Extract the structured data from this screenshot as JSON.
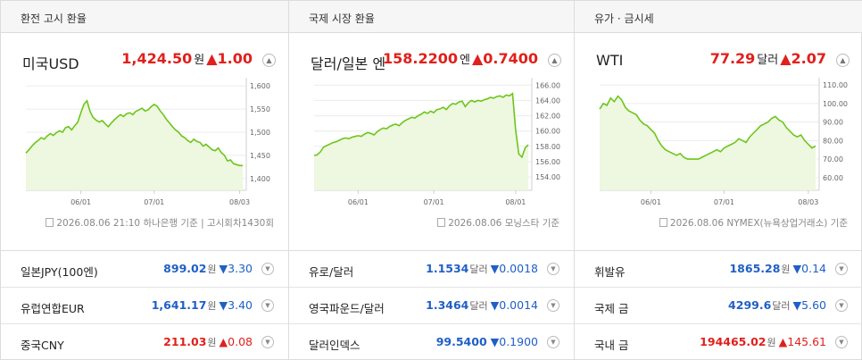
{
  "panels": [
    {
      "header": "환전 고시 환율",
      "main": {
        "title": "미국USD",
        "value": "1,424.50",
        "unit": "원",
        "change": "▲1.00",
        "direction": "up"
      },
      "chart": {
        "yticks": [
          "1,600",
          "1,550",
          "1,500",
          "1,450",
          "1,400"
        ],
        "yrange": [
          1390,
          1610
        ],
        "xticks": [
          {
            "label": "06/01",
            "i": 18
          },
          {
            "label": "07/01",
            "i": 42
          },
          {
            "label": "08/03",
            "i": 70
          }
        ],
        "values": [
          1455,
          1462,
          1470,
          1477,
          1482,
          1488,
          1485,
          1492,
          1497,
          1493,
          1499,
          1503,
          1500,
          1510,
          1512,
          1505,
          1514,
          1522,
          1542,
          1560,
          1568,
          1545,
          1532,
          1526,
          1522,
          1525,
          1518,
          1512,
          1520,
          1527,
          1533,
          1538,
          1534,
          1540,
          1542,
          1538,
          1545,
          1548,
          1552,
          1546,
          1548,
          1555,
          1560,
          1556,
          1546,
          1538,
          1528,
          1520,
          1512,
          1505,
          1500,
          1492,
          1488,
          1482,
          1478,
          1485,
          1480,
          1478,
          1470,
          1474,
          1468,
          1462,
          1460,
          1466,
          1456,
          1450,
          1438,
          1440,
          1432,
          1430,
          1428,
          1428
        ]
      },
      "source": {
        "date": "2026.08.06 21:10",
        "provider": "하나은행 기준",
        "extra": "고시회차1430회"
      },
      "rows": [
        {
          "label": "일본JPY(100엔)",
          "value": "899.02",
          "unit": "원",
          "change": "▼3.30",
          "direction": "down"
        },
        {
          "label": "유럽연합EUR",
          "value": "1,641.17",
          "unit": "원",
          "change": "▼3.40",
          "direction": "down"
        },
        {
          "label": "중국CNY",
          "value": "211.03",
          "unit": "원",
          "change": "▲0.08",
          "direction": "up"
        }
      ]
    },
    {
      "header": "국제 시장 환율",
      "main": {
        "title": "달러/일본 엔",
        "value": "158.2200",
        "unit": "엔",
        "change": "▲0.7400",
        "direction": "up"
      },
      "chart": {
        "yticks": [
          "166.00",
          "164.00",
          "162.00",
          "160.00",
          "158.00",
          "156.00",
          "154.00"
        ],
        "yrange": [
          153.2,
          166.5
        ],
        "xticks": [
          {
            "label": "06/01",
            "i": 14
          },
          {
            "label": "07/01",
            "i": 38
          },
          {
            "label": "08/01",
            "i": 64
          }
        ],
        "values": [
          156.8,
          156.9,
          157.3,
          157.9,
          158.1,
          158.3,
          158.5,
          158.6,
          158.8,
          159.0,
          159.1,
          159.0,
          159.2,
          159.3,
          159.4,
          159.3,
          159.6,
          159.8,
          159.7,
          159.5,
          159.9,
          160.2,
          160.4,
          160.3,
          160.6,
          160.8,
          160.9,
          160.7,
          161.1,
          161.4,
          161.6,
          161.8,
          161.7,
          162.0,
          162.2,
          162.5,
          162.3,
          162.6,
          162.4,
          162.8,
          162.9,
          163.1,
          162.8,
          163.3,
          163.6,
          163.5,
          163.8,
          163.9,
          163.2,
          163.7,
          164.0,
          163.8,
          164.0,
          163.9,
          164.1,
          164.2,
          164.4,
          164.3,
          164.5,
          164.6,
          164.4,
          164.7,
          164.6,
          164.9,
          160.1,
          157.0,
          156.6,
          157.8,
          158.2
        ]
      },
      "source": {
        "date": "2026.08.06",
        "provider": "모닝스타 기준"
      },
      "rows": [
        {
          "label": "유로/달러",
          "value": "1.1534",
          "unit": "달러",
          "change": "▼0.0018",
          "direction": "down"
        },
        {
          "label": "영국파운드/달러",
          "value": "1.3464",
          "unit": "달러",
          "change": "▼0.0014",
          "direction": "down"
        },
        {
          "label": "달러인덱스",
          "value": "99.5400",
          "unit": "",
          "change": "▼0.1900",
          "direction": "down"
        }
      ]
    },
    {
      "header": "유가 · 금시세",
      "main": {
        "title": "WTI",
        "value": "77.29",
        "unit": "달러",
        "change": "▲2.07",
        "direction": "up"
      },
      "chart": {
        "yticks": [
          "110.00",
          "100.00",
          "90.00",
          "80.00",
          "70.00",
          "60.00"
        ],
        "yrange": [
          57,
          112
        ],
        "xticks": [
          {
            "label": "06/01",
            "i": 14
          },
          {
            "label": "07/01",
            "i": 34
          },
          {
            "label": "08/03",
            "i": 57
          }
        ],
        "values": [
          97,
          100,
          99,
          103,
          101,
          104,
          102,
          98,
          96,
          95,
          94,
          91,
          89,
          88,
          86,
          84,
          80,
          77,
          75,
          74,
          73,
          72,
          73,
          71,
          70,
          70,
          70,
          70,
          71,
          72,
          73,
          74,
          75,
          74,
          76,
          77,
          78,
          79,
          81,
          80,
          79,
          82,
          84,
          86,
          88,
          89,
          90,
          92,
          93,
          91,
          90,
          87,
          85,
          83,
          82,
          83,
          80,
          78,
          76,
          77
        ]
      },
      "source": {
        "date": "2026.08.06",
        "provider": "NYMEX(뉴욕상업거래소) 기준"
      },
      "rows": [
        {
          "label": "휘발유",
          "value": "1865.28",
          "unit": "원",
          "change": "▼0.14",
          "direction": "down"
        },
        {
          "label": "국제 금",
          "value": "4299.6",
          "unit": "달러",
          "change": "▼5.60",
          "direction": "down"
        },
        {
          "label": "국내 금",
          "value": "194465.02",
          "unit": "원",
          "change": "▲145.61",
          "direction": "up"
        }
      ]
    }
  ]
}
